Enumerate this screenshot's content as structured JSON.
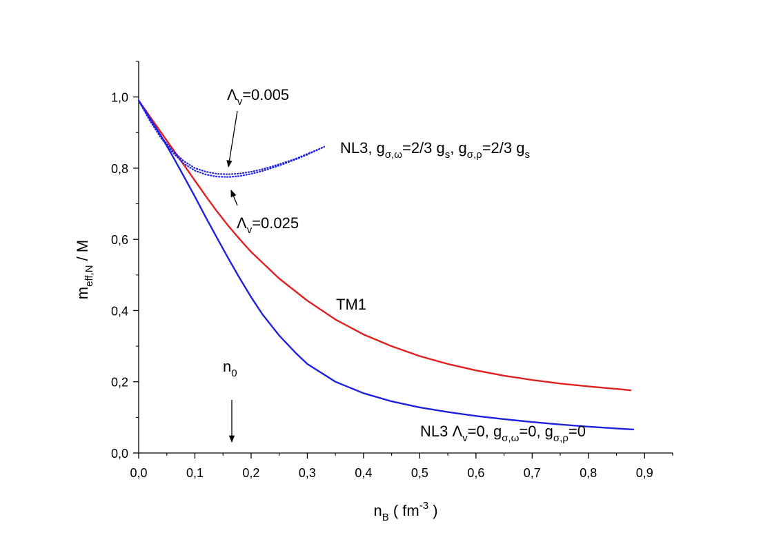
{
  "chart_data": {
    "type": "line",
    "xlabel": {
      "base": "n",
      "sub": "B",
      "rest": " ( fm",
      "sup": "-3",
      "end": " )"
    },
    "ylabel": {
      "base": "m",
      "sub": "eff,N",
      "rest": " / M"
    },
    "xlim": [
      0.0,
      0.95
    ],
    "ylim": [
      0.0,
      1.1
    ],
    "xticks": [
      "0,0",
      "0,1",
      "0,2",
      "0,3",
      "0,4",
      "0,5",
      "0,6",
      "0,7",
      "0,8",
      "0,9"
    ],
    "yticks": [
      "0,0",
      "0,2",
      "0,4",
      "0,6",
      "0,8",
      "1,0"
    ],
    "colors": {
      "blue": "#1f1fe0",
      "red": "#e01f1f",
      "axis": "#000000"
    },
    "series": [
      {
        "style": "solid",
        "color": "#e01f1f",
        "x": [
          0.0,
          0.02,
          0.04,
          0.06,
          0.08,
          0.1,
          0.12,
          0.14,
          0.16,
          0.18,
          0.2,
          0.25,
          0.3,
          0.35,
          0.4,
          0.45,
          0.5,
          0.55,
          0.6,
          0.65,
          0.7,
          0.75,
          0.8,
          0.85,
          0.875
        ],
        "y": [
          0.99,
          0.945,
          0.9,
          0.855,
          0.81,
          0.765,
          0.72,
          0.677,
          0.637,
          0.6,
          0.565,
          0.49,
          0.428,
          0.375,
          0.333,
          0.3,
          0.272,
          0.25,
          0.232,
          0.217,
          0.205,
          0.195,
          0.187,
          0.18,
          0.176
        ]
      },
      {
        "style": "solid",
        "color": "#1f1fe0",
        "x": [
          0.0,
          0.02,
          0.04,
          0.06,
          0.08,
          0.1,
          0.12,
          0.14,
          0.16,
          0.18,
          0.2,
          0.22,
          0.25,
          0.28,
          0.3,
          0.35,
          0.4,
          0.45,
          0.5,
          0.55,
          0.6,
          0.65,
          0.7,
          0.75,
          0.8,
          0.85,
          0.88
        ],
        "y": [
          0.99,
          0.94,
          0.89,
          0.835,
          0.778,
          0.72,
          0.66,
          0.602,
          0.545,
          0.49,
          0.438,
          0.39,
          0.33,
          0.28,
          0.25,
          0.2,
          0.168,
          0.145,
          0.128,
          0.115,
          0.104,
          0.095,
          0.087,
          0.08,
          0.074,
          0.069,
          0.066
        ]
      },
      {
        "style": "dotted",
        "color": "#1f1fe0",
        "x": [
          0.0,
          0.02,
          0.04,
          0.06,
          0.08,
          0.1,
          0.12,
          0.14,
          0.16,
          0.18,
          0.2,
          0.22,
          0.24,
          0.26,
          0.28,
          0.3,
          0.33
        ],
        "y": [
          0.99,
          0.935,
          0.888,
          0.85,
          0.82,
          0.8,
          0.79,
          0.784,
          0.783,
          0.785,
          0.79,
          0.797,
          0.806,
          0.816,
          0.827,
          0.84,
          0.86
        ]
      },
      {
        "style": "dotted",
        "color": "#1f1fe0",
        "x": [
          0.0,
          0.02,
          0.04,
          0.06,
          0.08,
          0.1,
          0.12,
          0.14,
          0.16,
          0.18,
          0.2,
          0.22,
          0.24,
          0.26,
          0.28,
          0.3,
          0.33
        ],
        "y": [
          0.99,
          0.933,
          0.884,
          0.845,
          0.813,
          0.793,
          0.782,
          0.776,
          0.775,
          0.778,
          0.784,
          0.792,
          0.802,
          0.813,
          0.825,
          0.838,
          0.86
        ]
      }
    ],
    "annotations": [
      {
        "id": "lam005",
        "parts": [
          [
            "t",
            "Λ"
          ],
          [
            "sub",
            "v"
          ],
          [
            "t",
            "=0.005"
          ]
        ]
      },
      {
        "id": "lam025",
        "parts": [
          [
            "t",
            "Λ"
          ],
          [
            "sub",
            "v"
          ],
          [
            "t",
            "=0.025"
          ]
        ]
      },
      {
        "id": "nl3top",
        "parts": [
          [
            "t",
            "NL3, g"
          ],
          [
            "sub",
            "σ,ω"
          ],
          [
            "t",
            "=2/3 g"
          ],
          [
            "sub",
            "s"
          ],
          [
            "t",
            ", g"
          ],
          [
            "sub",
            "σ,ρ"
          ],
          [
            "t",
            "=2/3 g"
          ],
          [
            "sub",
            "s"
          ]
        ]
      },
      {
        "id": "tm1",
        "parts": [
          [
            "t",
            "TM1"
          ]
        ]
      },
      {
        "id": "n0",
        "parts": [
          [
            "t",
            "n"
          ],
          [
            "sub",
            "0"
          ]
        ]
      },
      {
        "id": "nl3bottom",
        "parts": [
          [
            "t",
            "NL3 Λ"
          ],
          [
            "sub",
            "v"
          ],
          [
            "t",
            "=0, g"
          ],
          [
            "sub",
            "σ,ω"
          ],
          [
            "t",
            "=0, g"
          ],
          [
            "sub",
            "σ,ρ"
          ],
          [
            "t",
            "=0"
          ]
        ]
      }
    ]
  }
}
